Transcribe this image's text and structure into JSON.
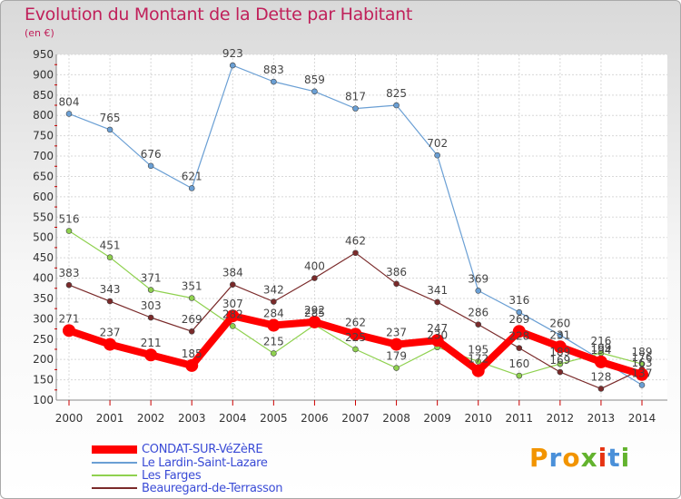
{
  "header": {
    "title": "Evolution du Montant de la Dette par Habitant",
    "unit": "(en €)"
  },
  "logo": {
    "text": "Proxiti",
    "colors": [
      "#f29400",
      "#4a90d9",
      "#f29400",
      "#63b32e",
      "#e63312",
      "#4a90d9",
      "#63b32e"
    ]
  },
  "chart_data": {
    "type": "line",
    "x": [
      2000,
      2001,
      2002,
      2003,
      2004,
      2005,
      2006,
      2007,
      2008,
      2009,
      2010,
      2011,
      2012,
      2013,
      2014
    ],
    "ylim": [
      100,
      950
    ],
    "yticks": [
      100,
      150,
      200,
      250,
      300,
      350,
      400,
      450,
      500,
      550,
      600,
      650,
      700,
      750,
      800,
      850,
      900,
      950
    ],
    "grid": true,
    "legend": "bottom-left",
    "series": [
      {
        "name": "CONDAT-SUR-VéZèRE",
        "color": "#ff0000",
        "values": [
          271,
          237,
          211,
          185,
          307,
          284,
          292,
          262,
          237,
          247,
          172,
          269,
          231,
          194,
          163
        ]
      },
      {
        "name": "Le Lardin-Saint-Lazare",
        "color": "#6a9fd4",
        "values": [
          804,
          765,
          676,
          621,
          923,
          883,
          859,
          817,
          825,
          702,
          369,
          316,
          260,
          199,
          137
        ]
      },
      {
        "name": "Les Farges",
        "color": "#8fd14f",
        "values": [
          516,
          451,
          371,
          351,
          282,
          215,
          285,
          225,
          179,
          230,
          195,
          160,
          189,
          216,
          189
        ]
      },
      {
        "name": "Beauregard-de-Terrasson",
        "color": "#7a2a2a",
        "values": [
          383,
          343,
          303,
          269,
          384,
          342,
          400,
          462,
          386,
          341,
          286,
          228,
          169,
          128,
          176
        ]
      }
    ],
    "data_labels": [
      [
        "271",
        "237",
        "211",
        "185",
        "307",
        "284",
        "292",
        "262",
        "237",
        "247",
        "172",
        "269",
        "231",
        "194",
        "163"
      ],
      [
        "804",
        "765",
        "676",
        "621",
        "923",
        "883",
        "859",
        "817",
        "825",
        "702",
        "369",
        "316",
        "260",
        "199",
        "137"
      ],
      [
        "516",
        "451",
        "371",
        "351",
        "282",
        "215",
        "285",
        "225",
        "179",
        "230",
        "195",
        "160",
        "189",
        "216",
        "189"
      ],
      [
        "383",
        "343",
        "303",
        "269",
        "384",
        "342",
        "400",
        "462",
        "386",
        "341",
        "286",
        "228",
        "169",
        "128",
        "176"
      ]
    ]
  }
}
